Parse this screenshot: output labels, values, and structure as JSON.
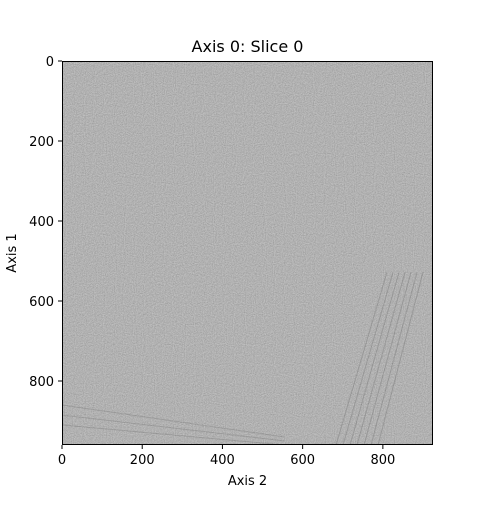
{
  "chart_data": {
    "type": "heatmap",
    "title": "Axis 0: Slice 0",
    "xlabel": "Axis 2",
    "ylabel": "Axis 1",
    "xlim": [
      0,
      925
    ],
    "ylim": [
      960,
      0
    ],
    "xticks": [
      0,
      200,
      400,
      600,
      800
    ],
    "yticks": [
      0,
      200,
      400,
      600,
      800
    ],
    "colormap": "gray",
    "image": {
      "base_color": "#808080",
      "description_visible": "grayscale tomogram slice with fine granular noise texture",
      "streak_color": "#6a6a6a"
    }
  }
}
